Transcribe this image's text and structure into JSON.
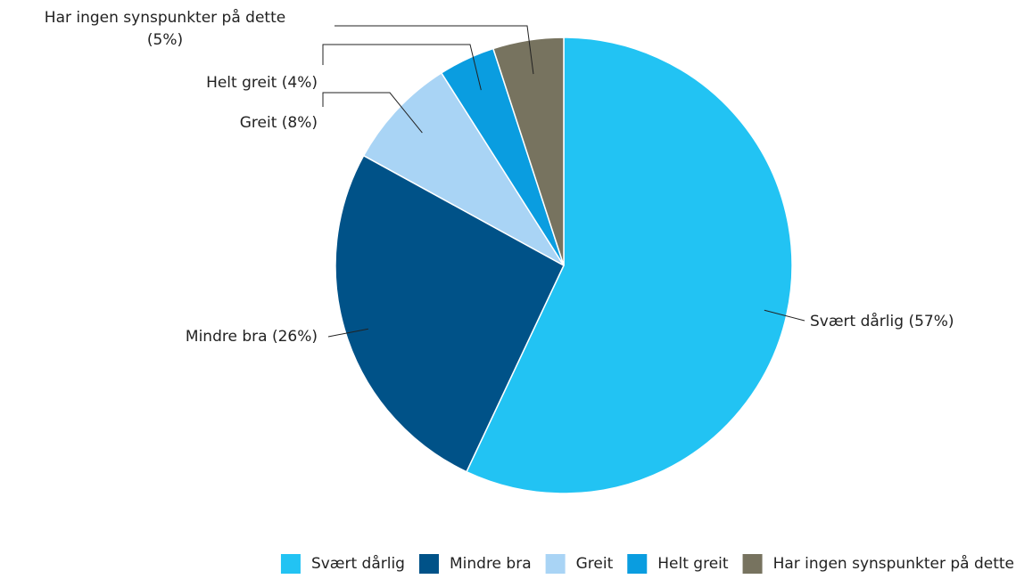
{
  "chart_data": {
    "type": "pie",
    "categories": [
      "Svært dårlig",
      "Mindre bra",
      "Greit",
      "Helt greit",
      "Har ingen synspunkter på dette"
    ],
    "values": [
      57,
      26,
      8,
      4,
      5
    ],
    "value_labels": [
      "Svært dårlig (57%)",
      "Mindre bra (26%)",
      "Greit (8%)",
      "Helt greit (4%)",
      "Har ingen synspunkter på dette (5%)"
    ],
    "colors": [
      "#22c3f3",
      "#005288",
      "#a9d4f5",
      "#0a9de0",
      "#77735f"
    ],
    "legend": "bottom"
  }
}
